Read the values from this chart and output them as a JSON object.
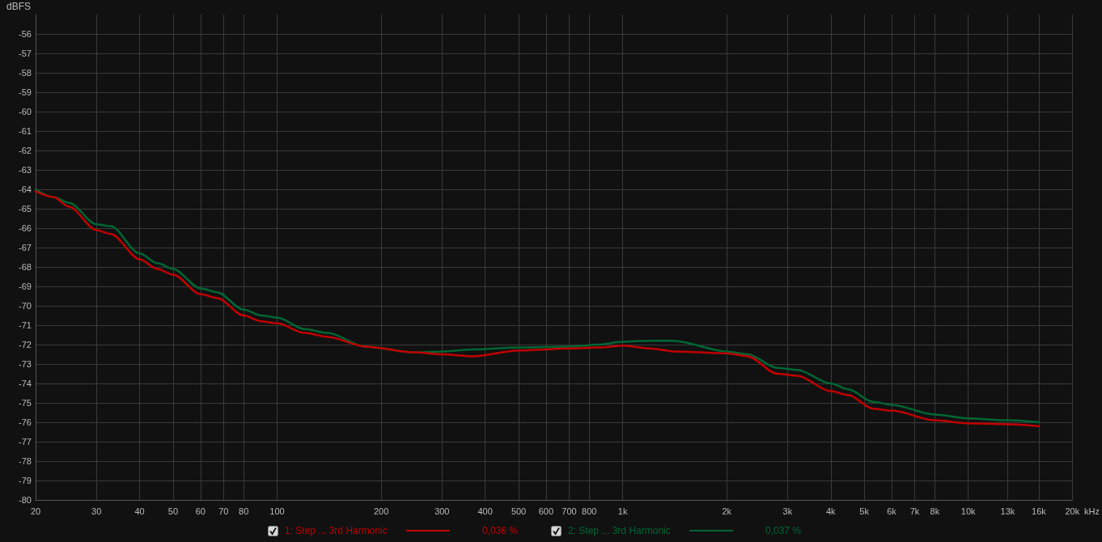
{
  "chart_data": {
    "type": "line",
    "ylabel": "dBFS",
    "log": "x",
    "grid": true,
    "legend": "bottom",
    "marker": "none",
    "line_style": "solid",
    "xlim": [
      20,
      20000
    ],
    "xticks": [
      20,
      30,
      40,
      50,
      60,
      70,
      80,
      100,
      200,
      300,
      400,
      500,
      600,
      700,
      800,
      {
        "value": 1000,
        "label": "1k"
      },
      {
        "value": 2000,
        "label": "2k"
      },
      {
        "value": 3000,
        "label": "3k"
      },
      {
        "value": 4000,
        "label": "4k"
      },
      {
        "value": 5000,
        "label": "5k"
      },
      {
        "value": 6000,
        "label": "6k"
      },
      {
        "value": 7000,
        "label": "7k"
      },
      {
        "value": 8000,
        "label": "8k"
      },
      {
        "value": 10000,
        "label": "10k"
      },
      {
        "value": 13000,
        "label": "13k"
      },
      {
        "value": 16000,
        "label": "16k"
      },
      {
        "value": 20000,
        "label": "20k"
      }
    ],
    "xlabel": "kHz",
    "ylim": [
      -80,
      -55
    ],
    "yticks": [
      -80,
      -79,
      -78,
      -77,
      -76,
      -75,
      -74,
      -73,
      -72,
      -71,
      -70,
      -69,
      -68,
      -67,
      -66,
      -65,
      -64,
      -63,
      -62,
      -61,
      -60,
      -59,
      -58,
      -57,
      -56
    ],
    "x": [
      20,
      22.5,
      25,
      30,
      33,
      40,
      45,
      50,
      60,
      67,
      80,
      90,
      100,
      120,
      140,
      180,
      250,
      300,
      370,
      500,
      700,
      850,
      1000,
      1200,
      1400,
      2000,
      2300,
      2800,
      3200,
      4000,
      4500,
      5300,
      6000,
      8000,
      10000,
      13000,
      16000
    ],
    "series": [
      {
        "name": "1: Step ... 3rd Harmonic",
        "color": "#c00000",
        "values": [
          -64.1,
          -64.4,
          -64.9,
          -66.1,
          -66.3,
          -67.6,
          -68.1,
          -68.4,
          -69.4,
          -69.6,
          -70.5,
          -70.8,
          -70.9,
          -71.4,
          -71.6,
          -72.1,
          -72.4,
          -72.5,
          -72.6,
          -72.3,
          -72.2,
          -72.15,
          -72.05,
          -72.2,
          -72.35,
          -72.45,
          -72.6,
          -73.5,
          -73.6,
          -74.4,
          -74.6,
          -75.3,
          -75.4,
          -75.9,
          -76.05,
          -76.1,
          -76.2
        ]
      },
      {
        "name": "2: Step ... 3rd Harmonic",
        "color": "#006633",
        "values": [
          -64.0,
          -64.4,
          -64.7,
          -65.8,
          -65.9,
          -67.3,
          -67.8,
          -68.1,
          -69.1,
          -69.3,
          -70.2,
          -70.5,
          -70.6,
          -71.2,
          -71.4,
          -72.1,
          -72.4,
          -72.35,
          -72.25,
          -72.15,
          -72.1,
          -72.0,
          -71.85,
          -71.8,
          -71.8,
          -72.35,
          -72.5,
          -73.2,
          -73.3,
          -74.0,
          -74.3,
          -74.95,
          -75.1,
          -75.6,
          -75.8,
          -75.9,
          -76.0
        ]
      }
    ],
    "annotations": [
      "0,036 %",
      "0,037 %"
    ]
  }
}
